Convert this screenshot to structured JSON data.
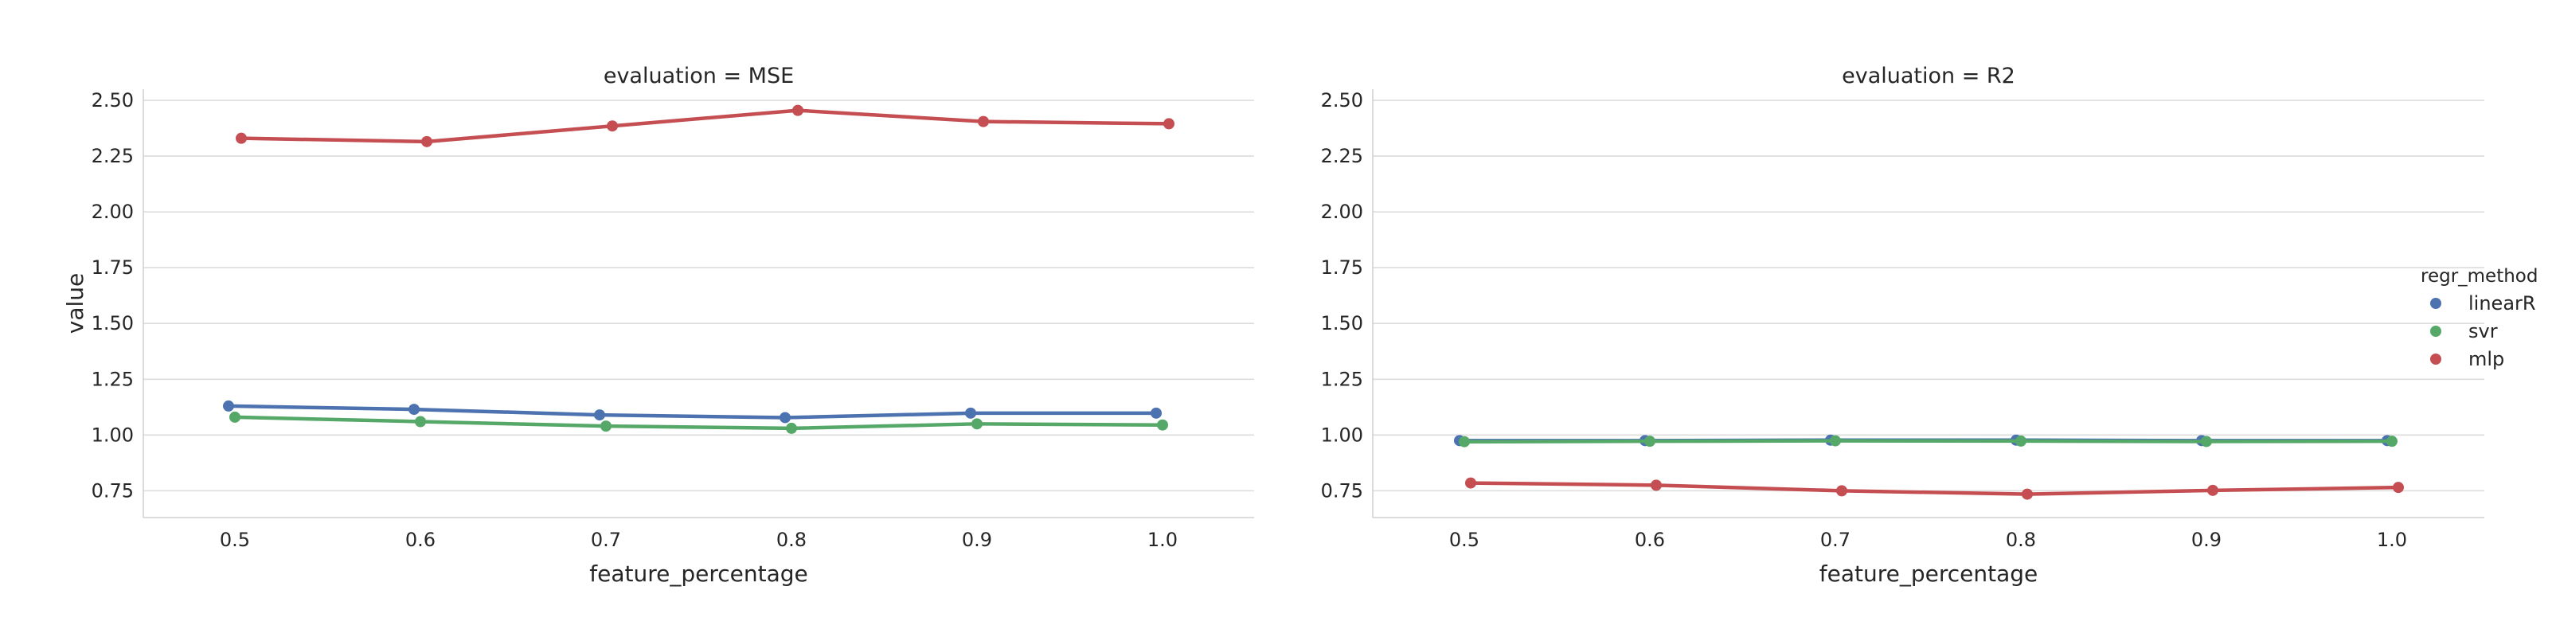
{
  "chart_data": [
    {
      "type": "line",
      "title": "evaluation = MSE",
      "xlabel": "feature_percentage",
      "ylabel": "value",
      "x": [
        0.5,
        0.6,
        0.7,
        0.8,
        0.9,
        1.0
      ],
      "x_tick_labels": [
        "0.5",
        "0.6",
        "0.7",
        "0.8",
        "0.9",
        "1.0"
      ],
      "ylim": [
        0.63,
        2.55
      ],
      "y_ticks": [
        0.75,
        1.0,
        1.25,
        1.5,
        1.75,
        2.0,
        2.25,
        2.5
      ],
      "y_tick_labels": [
        "0.75",
        "1.00",
        "1.25",
        "1.50",
        "1.75",
        "2.00",
        "2.25",
        "2.50"
      ],
      "grid": "horizontal",
      "series": [
        {
          "name": "linearR",
          "color": "#4c72b0",
          "values": [
            1.13,
            1.115,
            1.09,
            1.078,
            1.098,
            1.098
          ]
        },
        {
          "name": "svr",
          "color": "#55a868",
          "values": [
            1.08,
            1.06,
            1.04,
            1.03,
            1.05,
            1.045
          ]
        },
        {
          "name": "mlp",
          "color": "#c44e52",
          "values": [
            2.33,
            2.315,
            2.385,
            2.455,
            2.405,
            2.395
          ]
        }
      ]
    },
    {
      "type": "line",
      "title": "evaluation = R2",
      "xlabel": "feature_percentage",
      "ylabel": "",
      "x": [
        0.5,
        0.6,
        0.7,
        0.8,
        0.9,
        1.0
      ],
      "x_tick_labels": [
        "0.5",
        "0.6",
        "0.7",
        "0.8",
        "0.9",
        "1.0"
      ],
      "ylim": [
        0.63,
        2.55
      ],
      "y_ticks": [
        0.75,
        1.0,
        1.25,
        1.5,
        1.75,
        2.0,
        2.25,
        2.5
      ],
      "y_tick_labels": [
        "0.75",
        "1.00",
        "1.25",
        "1.50",
        "1.75",
        "2.00",
        "2.25",
        "2.50"
      ],
      "grid": "horizontal",
      "series": [
        {
          "name": "linearR",
          "color": "#4c72b0",
          "values": [
            0.975,
            0.975,
            0.977,
            0.977,
            0.975,
            0.975
          ]
        },
        {
          "name": "svr",
          "color": "#55a868",
          "values": [
            0.97,
            0.972,
            0.974,
            0.973,
            0.971,
            0.972
          ]
        },
        {
          "name": "mlp",
          "color": "#c44e52",
          "values": [
            0.785,
            0.775,
            0.75,
            0.735,
            0.752,
            0.765
          ]
        }
      ]
    }
  ],
  "legend": {
    "title": "regr_method",
    "placement": "right",
    "entries": [
      {
        "label": "linearR",
        "color": "#4c72b0"
      },
      {
        "label": "svr",
        "color": "#55a868"
      },
      {
        "label": "mlp",
        "color": "#c44e52"
      }
    ]
  }
}
